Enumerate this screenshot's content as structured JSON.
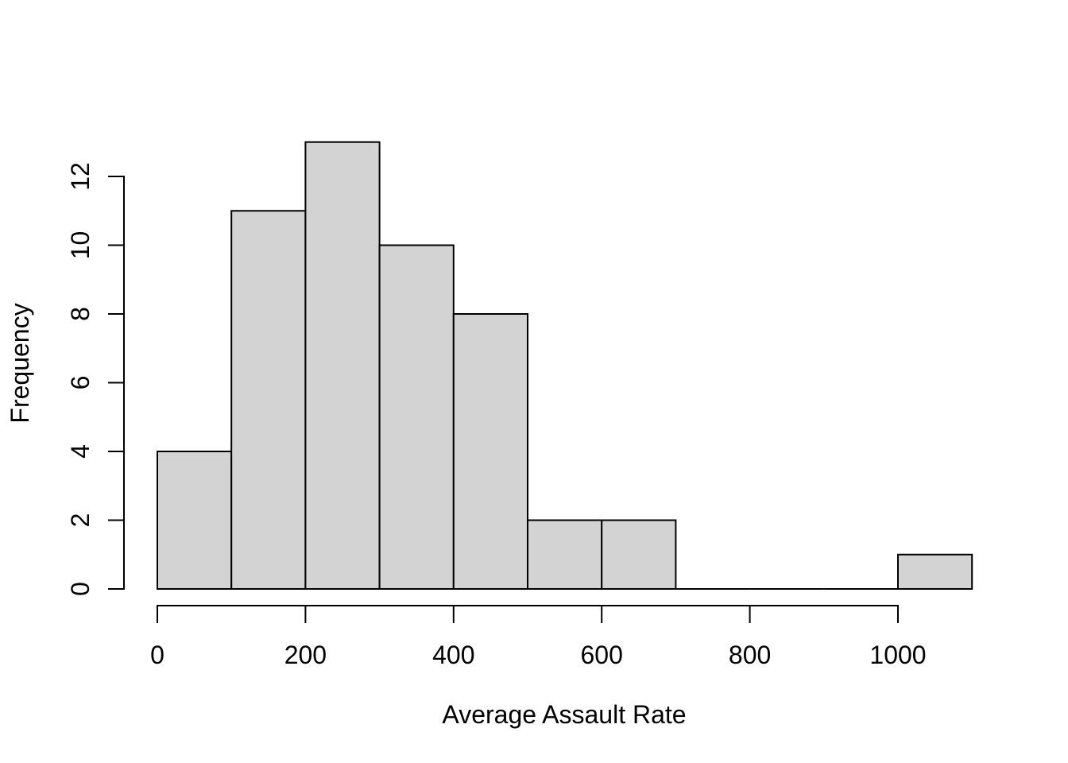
{
  "chart_data": {
    "type": "bar",
    "subtype": "histogram",
    "xlabel": "Average Assault Rate",
    "ylabel": "Frequency",
    "bin_width": 100,
    "bin_edges": [
      0,
      100,
      200,
      300,
      400,
      500,
      600,
      700,
      800,
      900,
      1000,
      1100
    ],
    "counts": [
      4,
      11,
      13,
      10,
      8,
      2,
      2,
      0,
      0,
      0,
      1
    ],
    "x_ticks": [
      0,
      200,
      400,
      600,
      800,
      1000
    ],
    "y_ticks": [
      0,
      2,
      4,
      6,
      8,
      10,
      12
    ],
    "xlim": [
      0,
      1100
    ],
    "ylim": [
      0,
      13
    ],
    "grid": "off",
    "legend": "none",
    "bar_fill": "#d3d3d3",
    "bar_stroke": "#000000",
    "axis_color": "#000000",
    "background": "#ffffff"
  }
}
